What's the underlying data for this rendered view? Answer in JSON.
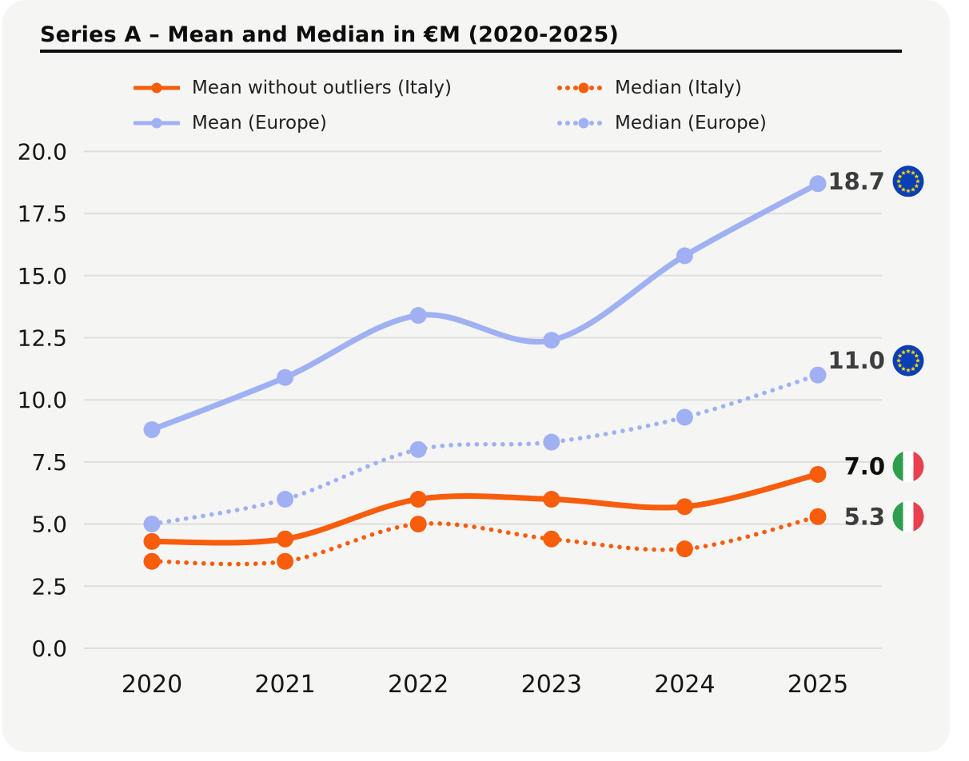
{
  "page": {
    "background": "#ffffff",
    "card_background": "#f5f5f4"
  },
  "title": {
    "text": "Series A – Mean and Median in €M (2020-2025)"
  },
  "legend": {
    "items": [
      {
        "label": "Mean without outliers (Italy)"
      },
      {
        "label": "Median (Italy)"
      },
      {
        "label": "Mean (Europe)"
      },
      {
        "label": "Median (Europe)"
      }
    ]
  },
  "colors": {
    "italy_orange": "#f85d0c",
    "europe_blue": "#9fb1f2",
    "gridline": "#dedede",
    "tick_text": "#161616",
    "end_label_gray": "#3d3d3d",
    "end_label_black": "#0d0d0d"
  },
  "chart_data": {
    "type": "line",
    "title": "Series A – Mean and Median in €M (2020-2025)",
    "x": [
      "2020",
      "2021",
      "2022",
      "2023",
      "2024",
      "2025"
    ],
    "series": [
      {
        "name": "Mean without outliers (Italy)",
        "slug": "mean-without-outliers-italy",
        "color": "#f85d0c",
        "line_style": "solid",
        "values": [
          4.3,
          4.4,
          6.0,
          6.0,
          5.7,
          7.0
        ],
        "end_label": "7.0",
        "end_label_color": "#0d0d0d",
        "flag": "italy"
      },
      {
        "name": "Median (Italy)",
        "slug": "median-italy",
        "color": "#f85d0c",
        "line_style": "dotted",
        "values": [
          3.5,
          3.5,
          5.0,
          4.4,
          4.0,
          5.3
        ],
        "end_label": "5.3",
        "end_label_color": "#3d3d3d",
        "flag": "italy"
      },
      {
        "name": "Mean (Europe)",
        "slug": "mean-europe",
        "color": "#9fb1f2",
        "line_style": "solid",
        "values": [
          8.8,
          10.9,
          13.4,
          12.4,
          15.8,
          18.7
        ],
        "end_label": "18.7",
        "end_label_color": "#3d3d3d",
        "flag": "eu"
      },
      {
        "name": "Median (Europe)",
        "slug": "median-europe",
        "color": "#9fb1f2",
        "line_style": "dotted",
        "values": [
          5.0,
          6.0,
          8.0,
          8.3,
          9.3,
          11.0
        ],
        "end_label": "11.0",
        "end_label_color": "#3d3d3d",
        "flag": "eu"
      }
    ],
    "xlabel": "",
    "ylabel": "",
    "ylim": [
      0,
      20
    ],
    "yticks": [
      "0.0",
      "2.5",
      "5.0",
      "7.5",
      "10.0",
      "12.5",
      "15.0",
      "17.5",
      "20.0"
    ],
    "grid": "horizontal",
    "legend_position": "top",
    "flag_colors": {
      "eu_blue": "#0b3fb3",
      "eu_star": "#f5d410",
      "italy_green": "#2f9e4e",
      "italy_white": "#ffffff",
      "italy_red": "#e8414d"
    }
  }
}
